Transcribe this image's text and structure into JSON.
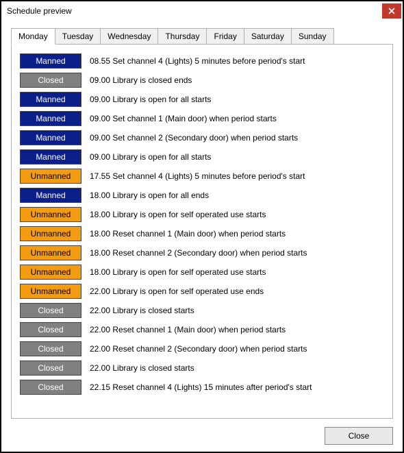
{
  "window": {
    "title": "Schedule preview",
    "close_label": "Close"
  },
  "tabs": [
    {
      "label": "Monday",
      "active": true
    },
    {
      "label": "Tuesday",
      "active": false
    },
    {
      "label": "Wednesday",
      "active": false
    },
    {
      "label": "Thursday",
      "active": false
    },
    {
      "label": "Friday",
      "active": false
    },
    {
      "label": "Saturday",
      "active": false
    },
    {
      "label": "Sunday",
      "active": false
    }
  ],
  "status_styles": {
    "Manned": {
      "bg": "#0b1f8b",
      "fg": "#ffffff"
    },
    "Closed": {
      "bg": "#808080",
      "fg": "#ffffff"
    },
    "Unmanned": {
      "bg": "#f39c12",
      "fg": "#000000"
    }
  },
  "events": [
    {
      "status": "Manned",
      "text": "08.55 Set channel 4 (Lights) 5 minutes before period's start"
    },
    {
      "status": "Closed",
      "text": "09.00 Library is closed ends"
    },
    {
      "status": "Manned",
      "text": "09.00 Library is open for all starts"
    },
    {
      "status": "Manned",
      "text": "09.00 Set channel 1 (Main door) when period starts"
    },
    {
      "status": "Manned",
      "text": "09.00 Set channel 2 (Secondary door) when period starts"
    },
    {
      "status": "Manned",
      "text": "09.00 Library is open for all starts"
    },
    {
      "status": "Unmanned",
      "text": "17.55 Set channel 4 (Lights) 5 minutes before period's start"
    },
    {
      "status": "Manned",
      "text": "18.00 Library is open for all ends"
    },
    {
      "status": "Unmanned",
      "text": "18.00 Library is open for self operated use starts"
    },
    {
      "status": "Unmanned",
      "text": "18.00 Reset channel 1 (Main door) when period starts"
    },
    {
      "status": "Unmanned",
      "text": "18.00 Reset channel 2 (Secondary door) when period starts"
    },
    {
      "status": "Unmanned",
      "text": "18.00 Library is open for self operated use starts"
    },
    {
      "status": "Unmanned",
      "text": "22.00 Library is open for self operated use ends"
    },
    {
      "status": "Closed",
      "text": "22.00 Library is closed starts"
    },
    {
      "status": "Closed",
      "text": "22.00 Reset channel 1 (Main door) when period starts"
    },
    {
      "status": "Closed",
      "text": "22.00 Reset channel 2 (Secondary door) when period starts"
    },
    {
      "status": "Closed",
      "text": "22.00 Library is closed starts"
    },
    {
      "status": "Closed",
      "text": "22.15 Reset channel 4 (Lights) 15 minutes after period's start"
    }
  ]
}
